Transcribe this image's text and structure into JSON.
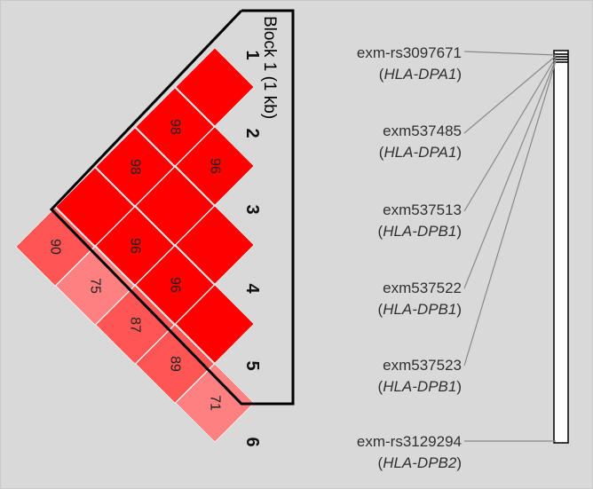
{
  "block_label": "Block 1 (1 kb)",
  "marker_numbers": [
    "1",
    "2",
    "3",
    "4",
    "5",
    "6"
  ],
  "ld_values": [
    {
      "i": 1,
      "j": 2,
      "value": ""
    },
    {
      "i": 2,
      "j": 3,
      "value": "96"
    },
    {
      "i": 3,
      "j": 4,
      "value": ""
    },
    {
      "i": 4,
      "j": 5,
      "value": ""
    },
    {
      "i": 5,
      "j": 6,
      "value": "71"
    },
    {
      "i": 1,
      "j": 3,
      "value": "98"
    },
    {
      "i": 2,
      "j": 4,
      "value": ""
    },
    {
      "i": 3,
      "j": 5,
      "value": "96"
    },
    {
      "i": 4,
      "j": 6,
      "value": "89"
    },
    {
      "i": 1,
      "j": 4,
      "value": "98"
    },
    {
      "i": 2,
      "j": 5,
      "value": "96"
    },
    {
      "i": 3,
      "j": 6,
      "value": "87"
    },
    {
      "i": 1,
      "j": 5,
      "value": ""
    },
    {
      "i": 2,
      "j": 6,
      "value": "75"
    },
    {
      "i": 1,
      "j": 6,
      "value": "90"
    }
  ],
  "snps": [
    {
      "name": "exm-rs3097671",
      "gene_open": "(",
      "gene": "HLA-DPA1",
      "gene_close": ")"
    },
    {
      "name": "exm537485",
      "gene_open": "(",
      "gene": "HLA-DPA1",
      "gene_close": ")"
    },
    {
      "name": "exm537513",
      "gene_open": "(",
      "gene": "HLA-DPB1",
      "gene_close": ")"
    },
    {
      "name": "exm537522",
      "gene_open": "(",
      "gene": "HLA-DPB1",
      "gene_close": ")"
    },
    {
      "name": "exm537523",
      "gene_open": "(",
      "gene": "HLA-DPB1",
      "gene_close": ")"
    },
    {
      "name": "exm-rs3129294",
      "gene_open": "(",
      "gene": "HLA-DPB2",
      "gene_close": ")"
    }
  ],
  "colors": {
    "background": "#d9d9d9",
    "strong_ld": "#ff0000",
    "mid_ld": "#ff5555",
    "weak_ld": "#ff8080",
    "outline": "#000000"
  }
}
